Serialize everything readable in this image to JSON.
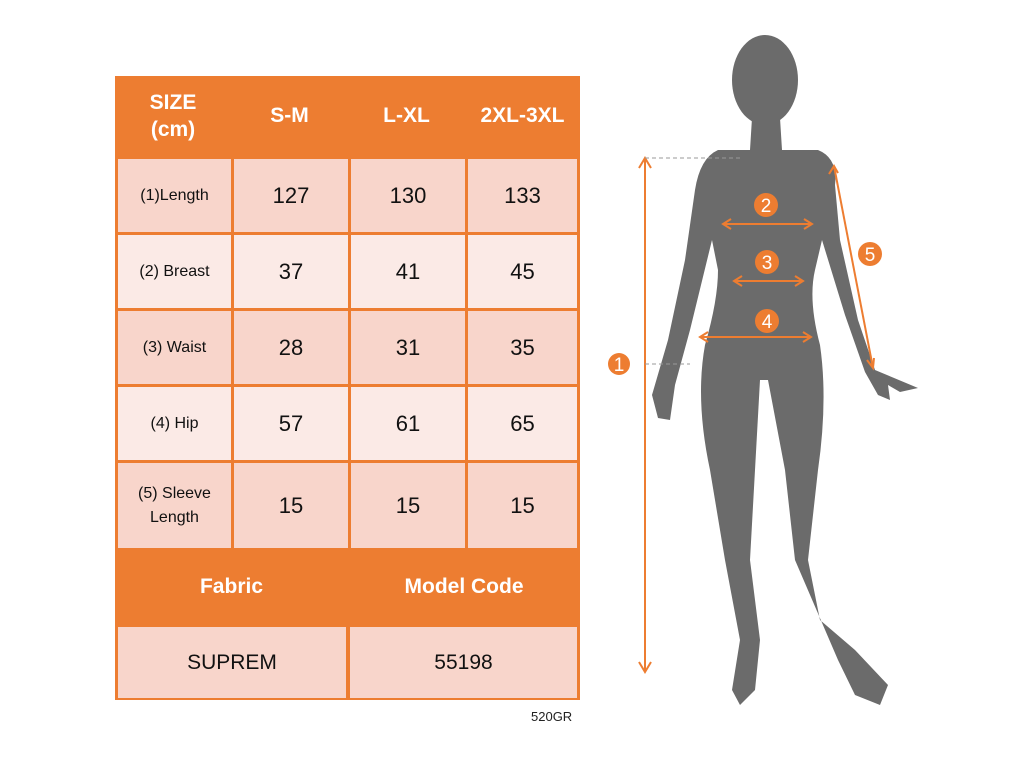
{
  "colors": {
    "accent": "#ED7D31",
    "row_dark": "#F8D5CB",
    "row_light": "#FBEAE6",
    "silhouette": "#6B6B6B"
  },
  "table": {
    "header": [
      "SIZE\n(cm)",
      "S-M",
      "L-XL",
      "2XL-3XL"
    ],
    "rows": [
      {
        "label": "(1)Length",
        "values": [
          "127",
          "130",
          "133"
        ]
      },
      {
        "label": "(2) Breast",
        "values": [
          "37",
          "41",
          "45"
        ]
      },
      {
        "label": "(3) Waist",
        "values": [
          "28",
          "31",
          "35"
        ]
      },
      {
        "label": "(4) Hip",
        "values": [
          "57",
          "61",
          "65"
        ]
      },
      {
        "label": "(5) Sleeve\nLength",
        "values": [
          "15",
          "15",
          "15"
        ]
      }
    ],
    "footer_headers": [
      "Fabric",
      "Model Code"
    ],
    "footer_values": [
      "SUPREM",
      "55198"
    ]
  },
  "product_code": "520GR",
  "figure": {
    "markers": [
      "1",
      "2",
      "3",
      "4",
      "5"
    ]
  }
}
